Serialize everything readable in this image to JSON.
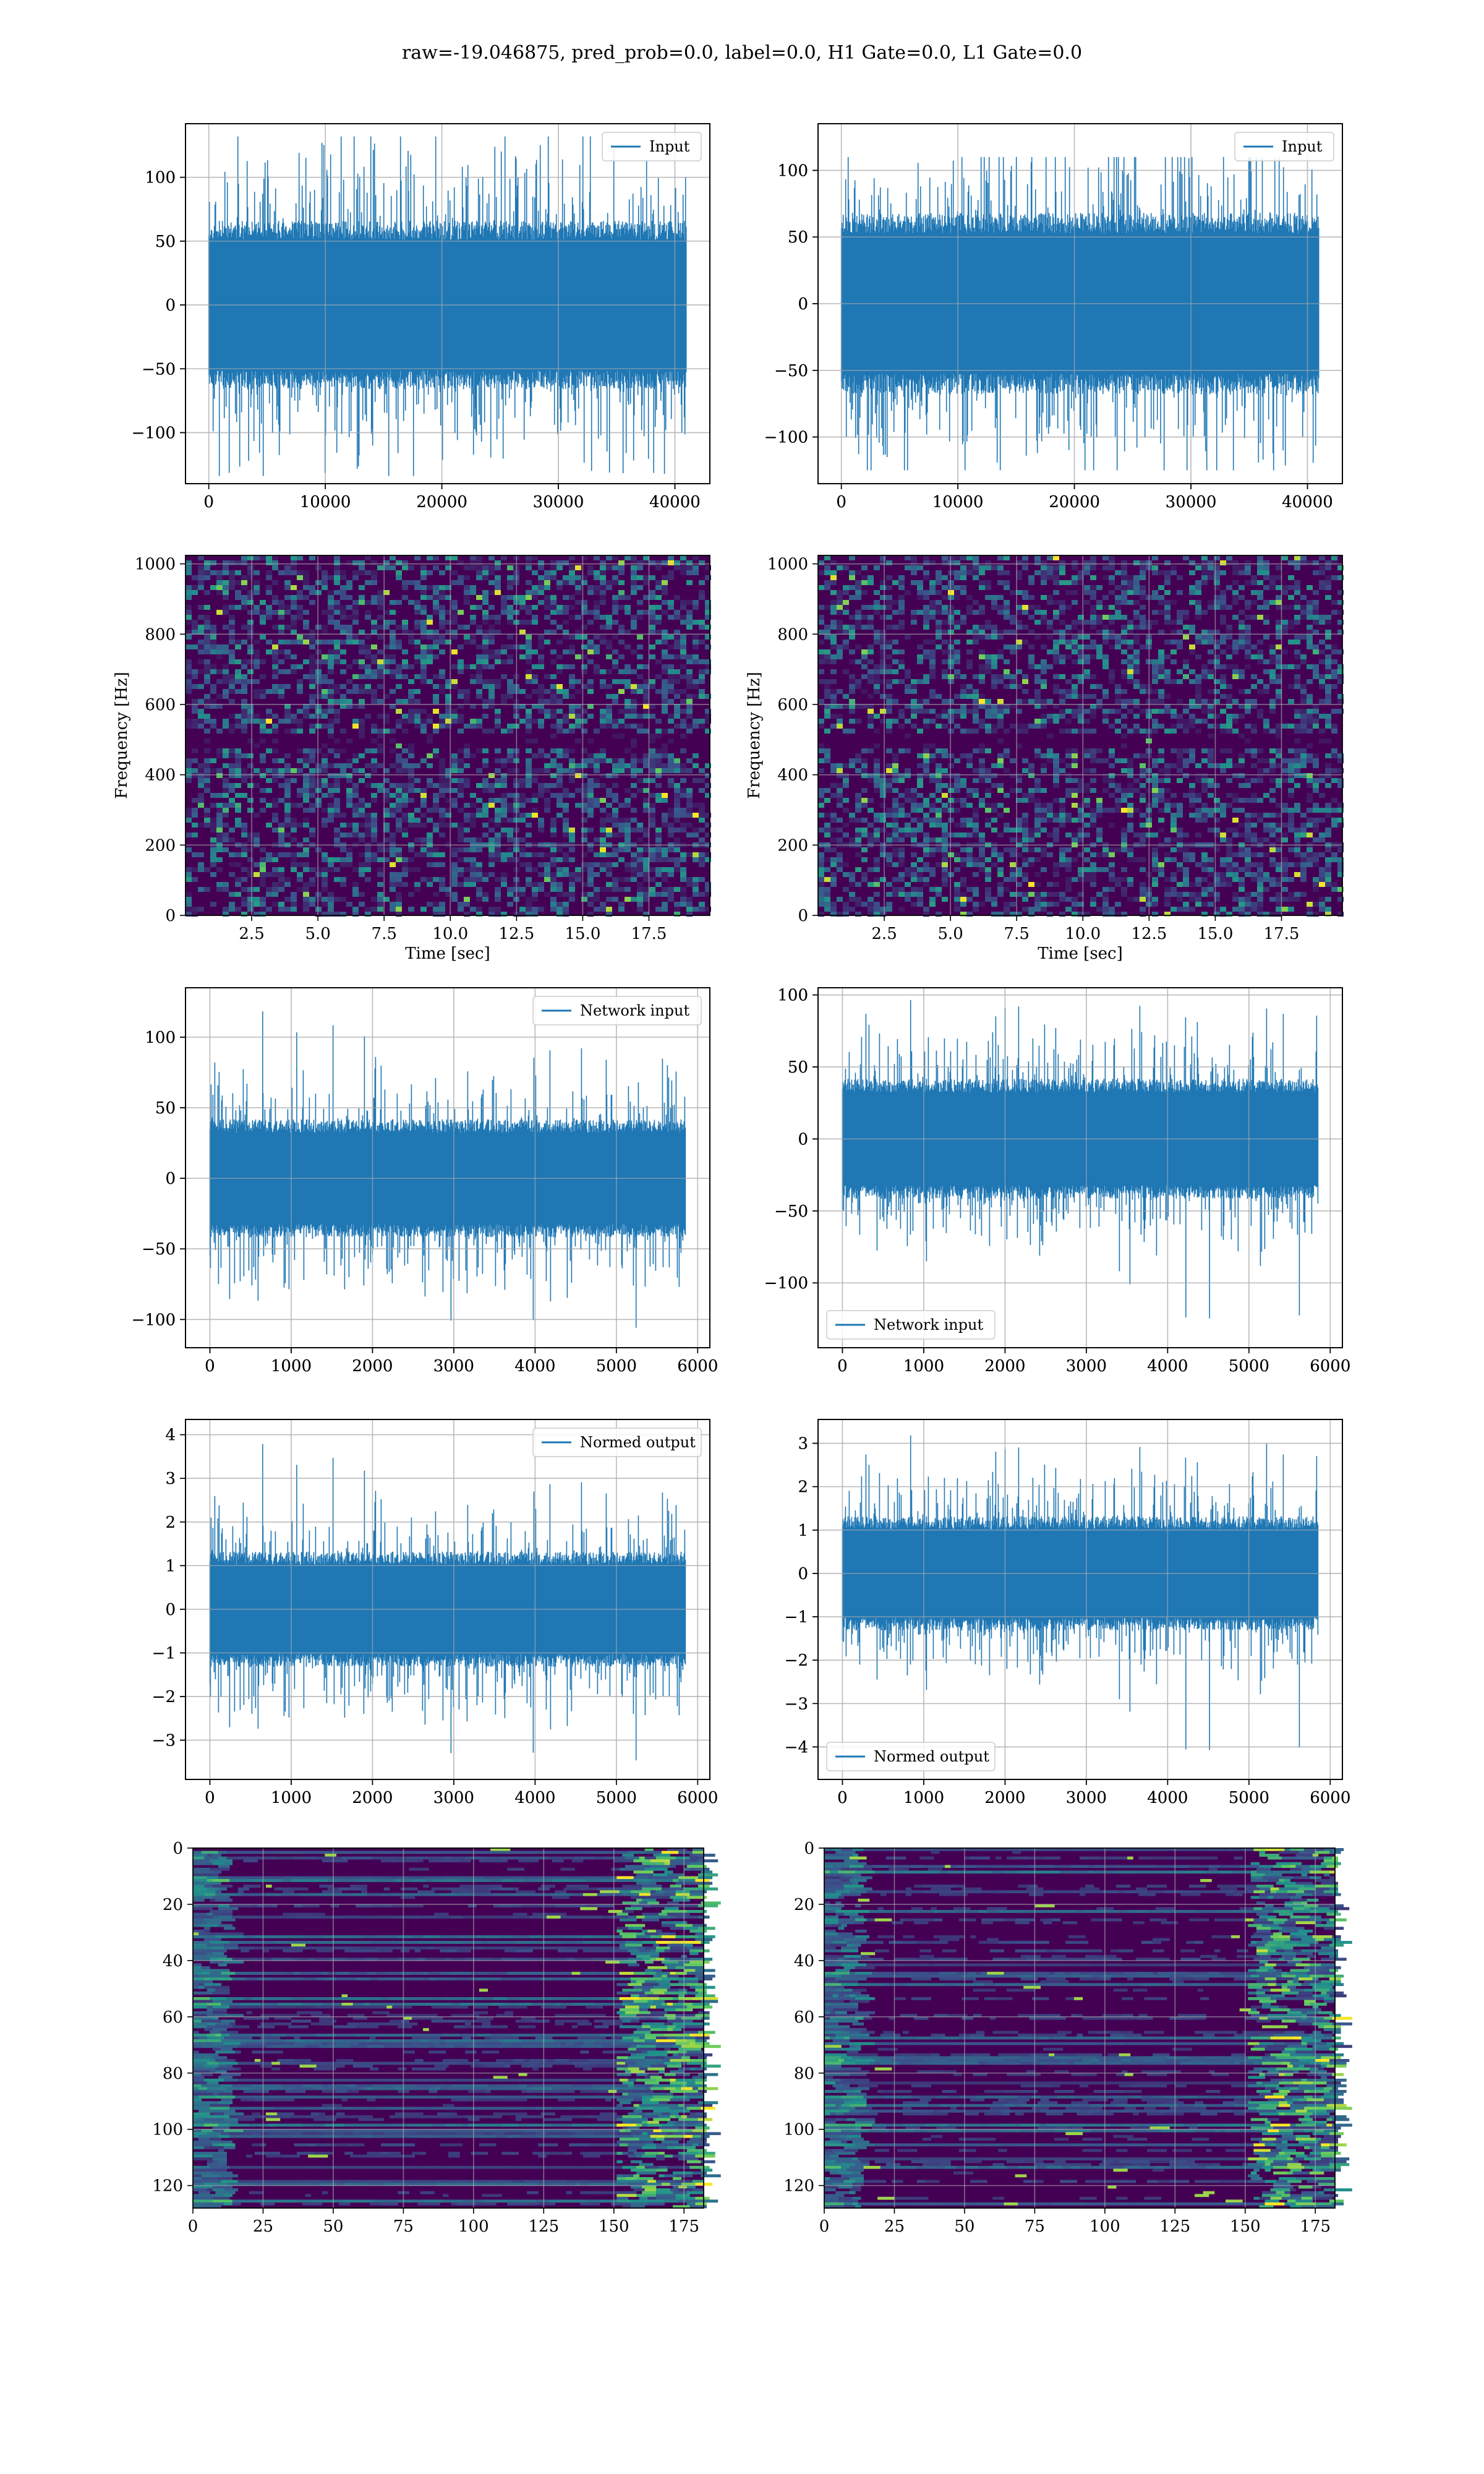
{
  "figure": {
    "suptitle": "raw=-19.046875, pred_prob=0.0, label=0.0, H1 Gate=0.0, L1 Gate=0.0"
  },
  "colors": {
    "line": "#1f77b4",
    "grid": "#b0b0b0",
    "heatmap_low": "#440154",
    "heatmap_mid": "#21918c",
    "heatmap_high": "#fde725"
  },
  "chart_data": [
    {
      "id": "input-h1",
      "type": "line",
      "row": 0,
      "col": 0,
      "legend": {
        "label": "Input",
        "loc": "upper right"
      },
      "xlim": [
        -2000,
        43000
      ],
      "ylim": [
        -140,
        142
      ],
      "xticks": [
        0,
        10000,
        20000,
        30000,
        40000
      ],
      "yticks": [
        -100,
        -50,
        0,
        50,
        100
      ],
      "signal": {
        "x_start": 0,
        "x_end": 40960,
        "core_amp": 60,
        "spike_max": 132,
        "spike_min": -134,
        "seed": 11
      },
      "grid": true
    },
    {
      "id": "input-l1",
      "type": "line",
      "row": 0,
      "col": 1,
      "legend": {
        "label": "Input",
        "loc": "upper right"
      },
      "xlim": [
        -2000,
        43000
      ],
      "ylim": [
        -135,
        135
      ],
      "xticks": [
        0,
        10000,
        20000,
        30000,
        40000
      ],
      "yticks": [
        -100,
        -50,
        0,
        50,
        100
      ],
      "signal": {
        "x_start": 0,
        "x_end": 40960,
        "core_amp": 62,
        "spike_max": 110,
        "spike_min": -125,
        "seed": 23
      },
      "grid": true
    },
    {
      "id": "spectrogram-h1",
      "type": "heatmap",
      "row": 1,
      "col": 0,
      "xlabel": "Time [sec]",
      "ylabel": "Frequency [Hz]",
      "xlim": [
        0,
        19.8
      ],
      "ylim": [
        0,
        1024
      ],
      "xticks": [
        2.5,
        5.0,
        7.5,
        10.0,
        12.5,
        15.0,
        17.5
      ],
      "yticks": [
        0,
        200,
        400,
        600,
        800,
        1000
      ],
      "grid": true,
      "seed": 5
    },
    {
      "id": "spectrogram-l1",
      "type": "heatmap",
      "row": 1,
      "col": 1,
      "xlabel": "Time [sec]",
      "ylabel": "Frequency [Hz]",
      "xlim": [
        0,
        19.8
      ],
      "ylim": [
        0,
        1024
      ],
      "xticks": [
        2.5,
        5.0,
        7.5,
        10.0,
        12.5,
        15.0,
        17.5
      ],
      "yticks": [
        0,
        200,
        400,
        600,
        800,
        1000
      ],
      "grid": true,
      "seed": 9
    },
    {
      "id": "network-input-h1",
      "type": "line",
      "row": 2,
      "col": 0,
      "legend": {
        "label": "Network input",
        "loc": "upper right"
      },
      "xlim": [
        -300,
        6150
      ],
      "ylim": [
        -120,
        135
      ],
      "xticks": [
        0,
        1000,
        2000,
        3000,
        4000,
        5000,
        6000
      ],
      "yticks": [
        -100,
        -50,
        0,
        50,
        100
      ],
      "signal": {
        "x_start": 0,
        "x_end": 5850,
        "core_amp": 38,
        "spike_max": 125,
        "spike_min": -110,
        "seed": 31
      },
      "grid": true
    },
    {
      "id": "network-input-l1",
      "type": "line",
      "row": 2,
      "col": 1,
      "legend": {
        "label": "Network input",
        "loc": "lower left"
      },
      "xlim": [
        -300,
        6150
      ],
      "ylim": [
        -145,
        105
      ],
      "xticks": [
        0,
        1000,
        2000,
        3000,
        4000,
        5000,
        6000
      ],
      "yticks": [
        -100,
        -50,
        0,
        50,
        100
      ],
      "signal": {
        "x_start": 0,
        "x_end": 5850,
        "core_amp": 38,
        "spike_max": 100,
        "spike_min": -133,
        "seed": 47
      },
      "grid": true
    },
    {
      "id": "normed-output-h1",
      "type": "line",
      "row": 3,
      "col": 0,
      "legend": {
        "label": "Normed output",
        "loc": "upper right"
      },
      "xlim": [
        -300,
        6150
      ],
      "ylim": [
        -3.9,
        4.35
      ],
      "xticks": [
        0,
        1000,
        2000,
        3000,
        4000,
        5000,
        6000
      ],
      "yticks": [
        -3,
        -2,
        -1,
        0,
        1,
        2,
        3,
        4
      ],
      "signal": {
        "x_start": 0,
        "x_end": 5850,
        "core_amp": 1.2,
        "spike_max": 4.0,
        "spike_min": -3.6,
        "seed": 31
      },
      "grid": true
    },
    {
      "id": "normed-output-l1",
      "type": "line",
      "row": 3,
      "col": 1,
      "legend": {
        "label": "Normed output",
        "loc": "lower left"
      },
      "xlim": [
        -300,
        6150
      ],
      "ylim": [
        -4.75,
        3.55
      ],
      "xticks": [
        0,
        1000,
        2000,
        3000,
        4000,
        5000,
        6000
      ],
      "yticks": [
        -4,
        -3,
        -2,
        -1,
        0,
        1,
        2,
        3
      ],
      "signal": {
        "x_start": 0,
        "x_end": 5850,
        "core_amp": 1.2,
        "spike_max": 3.3,
        "spike_min": -4.35,
        "seed": 47
      },
      "grid": true
    },
    {
      "id": "feature-map-h1",
      "type": "heatmap",
      "row": 4,
      "col": 0,
      "xlim": [
        0,
        182
      ],
      "ylim": [
        128,
        0
      ],
      "xticks": [
        0,
        25,
        50,
        75,
        100,
        125,
        150,
        175
      ],
      "yticks": [
        0,
        20,
        40,
        60,
        80,
        100,
        120
      ],
      "grid": true,
      "seed": 13
    },
    {
      "id": "feature-map-l1",
      "type": "heatmap",
      "row": 4,
      "col": 1,
      "xlim": [
        0,
        182
      ],
      "ylim": [
        128,
        0
      ],
      "xticks": [
        0,
        25,
        50,
        75,
        100,
        125,
        150,
        175
      ],
      "yticks": [
        0,
        20,
        40,
        60,
        80,
        100,
        120
      ],
      "grid": true,
      "seed": 17
    }
  ]
}
